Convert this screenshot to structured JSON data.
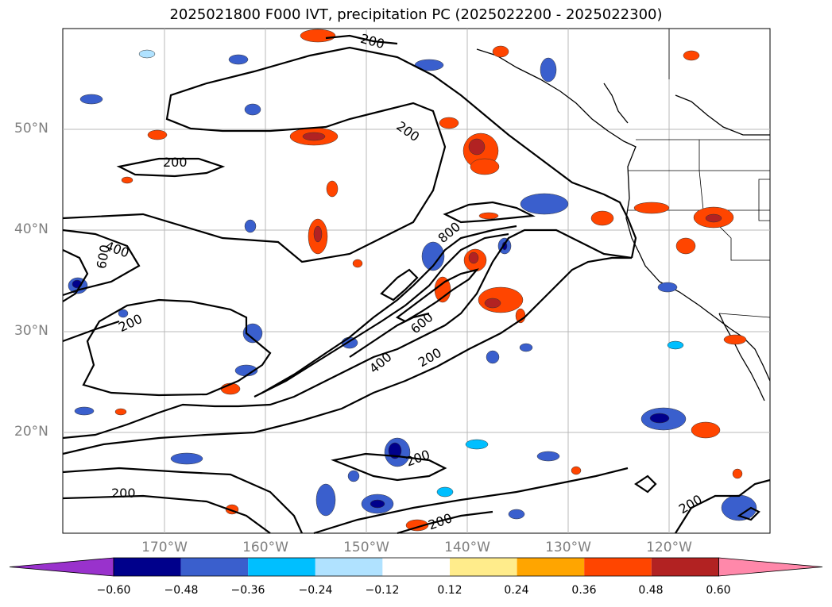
{
  "title": "2025021800 F000 IVT, precipitation PC (2025022200 - 2025022300)",
  "map": {
    "lat_labels": [
      "50°N",
      "40°N",
      "30°N",
      "20°N"
    ],
    "lon_labels": [
      "170°W",
      "160°W",
      "150°W",
      "140°W",
      "130°W",
      "120°W"
    ],
    "contour_labels": [
      "200",
      "200",
      "200",
      "600",
      "400",
      "200",
      "200",
      "800",
      "600",
      "400",
      "200",
      "200",
      "200",
      "200",
      "200",
      "200"
    ]
  },
  "colorbar": {
    "ticks": [
      "−0.60",
      "−0.48",
      "−0.36",
      "−0.24",
      "−0.12",
      "0.12",
      "0.24",
      "0.36",
      "0.48",
      "0.60"
    ],
    "colors": [
      "#9932cc",
      "#00008b",
      "#3a5fcd",
      "#00bfff",
      "#b0e2ff",
      "#ffffff",
      "#ffec8b",
      "#ffa500",
      "#ff4500",
      "#b22222",
      "#ff88aa"
    ]
  }
}
